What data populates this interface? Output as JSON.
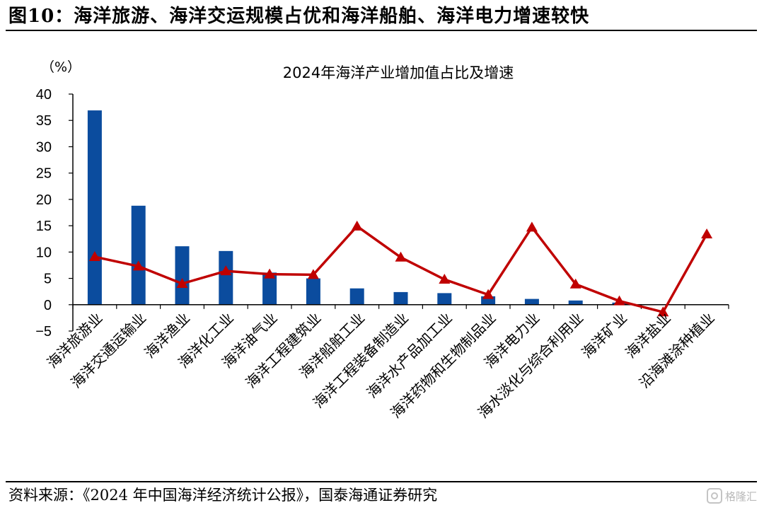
{
  "figure_title": "图10：海洋旅游、海洋交运规模占优和海洋船舶、海洋电力增速较快",
  "source": "资料来源：《2024 年中国海洋经济统计公报》，国泰海通证券研究",
  "watermark": "格隆汇",
  "colors": {
    "bar": "#0B4C9E",
    "line": "#C00000",
    "axis": "#000000"
  },
  "chart_data": {
    "type": "bar",
    "title": "2024年海洋产业增加值占比及增速",
    "ylabel": "（%）",
    "xlabel": "",
    "ylim": [
      -5,
      40
    ],
    "yticks": [
      -5,
      0,
      5,
      10,
      15,
      20,
      25,
      30,
      35,
      40
    ],
    "grid": false,
    "legend": "none",
    "categories": [
      "海洋旅游业",
      "海洋交通运输业",
      "海洋渔业",
      "海洋化工业",
      "海洋油气业",
      "海洋工程建筑业",
      "海洋船舶工业",
      "海洋工程装备制造业",
      "海洋水产品加工业",
      "海洋药物和生物制品业",
      "海洋电力业",
      "海水淡化与综合利用业",
      "海洋矿业",
      "海洋盐业",
      "沿海滩涂种植业"
    ],
    "series": [
      {
        "type": "bar",
        "values": [
          36.9,
          18.8,
          11.1,
          10.2,
          6.1,
          5.0,
          3.1,
          2.4,
          2.2,
          1.6,
          1.1,
          0.8,
          0.4,
          0.1,
          0.0
        ]
      },
      {
        "type": "line",
        "values": [
          9.1,
          7.3,
          4.0,
          6.4,
          5.8,
          5.7,
          14.9,
          9.0,
          4.8,
          1.9,
          14.7,
          3.9,
          0.7,
          -1.4,
          13.4
        ]
      }
    ]
  }
}
